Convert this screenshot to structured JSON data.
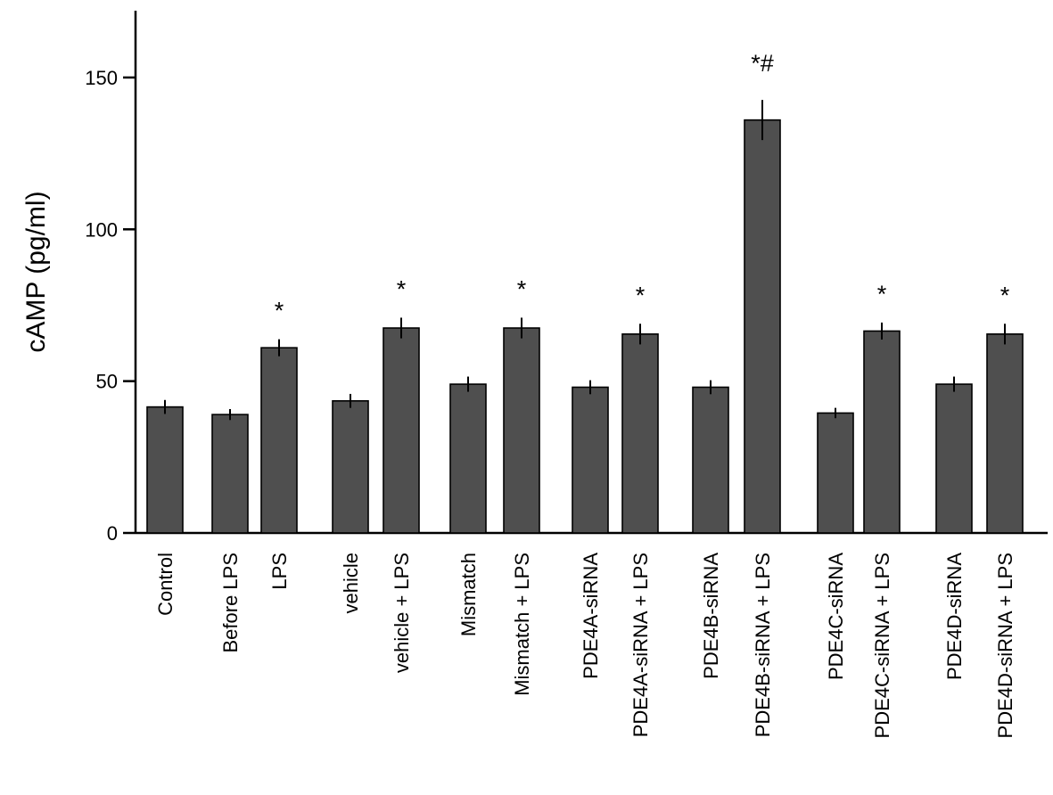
{
  "chart_data": {
    "type": "bar",
    "title": "",
    "xlabel": "",
    "ylabel": "cAMP (pg/ml)",
    "ylim": [
      0,
      172
    ],
    "yticks": [
      0,
      50,
      100,
      150
    ],
    "grid": false,
    "legend": "none",
    "bar_color": "#4f4f4f",
    "groups": [
      [
        "Control"
      ],
      [
        "Before LPS",
        "LPS"
      ],
      [
        "vehicle",
        "vehicle + LPS"
      ],
      [
        "Mismatch",
        "Mismatch + LPS"
      ],
      [
        "PDE4A-siRNA",
        "PDE4A-siRNA + LPS"
      ],
      [
        "PDE4B-siRNA",
        "PDE4B-siRNA + LPS"
      ],
      [
        "PDE4C-siRNA",
        "PDE4C-siRNA + LPS"
      ],
      [
        "PDE4D-siRNA",
        "PDE4D-siRNA + LPS"
      ]
    ],
    "categories": [
      "Control",
      "Before LPS",
      "LPS",
      "vehicle",
      "vehicle + LPS",
      "Mismatch",
      "Mismatch + LPS",
      "PDE4A-siRNA",
      "PDE4A-siRNA + LPS",
      "PDE4B-siRNA",
      "PDE4B-siRNA + LPS",
      "PDE4C-siRNA",
      "PDE4C-siRNA + LPS",
      "PDE4D-siRNA",
      "PDE4D-siRNA + LPS"
    ],
    "values": [
      41.5,
      39,
      61,
      43.5,
      67.5,
      49,
      67.5,
      48,
      65.5,
      48,
      136,
      39.5,
      66.5,
      49,
      65.5
    ],
    "errors": [
      2.3,
      1.8,
      2.8,
      2.3,
      3.4,
      2.5,
      3.4,
      2.3,
      3.4,
      2.3,
      6.6,
      1.7,
      2.8,
      2.5,
      3.4
    ],
    "annotations": [
      "",
      "",
      "*",
      "",
      "*",
      "",
      "*",
      "",
      "*",
      "",
      "*#",
      "",
      "*",
      "",
      "*"
    ]
  }
}
